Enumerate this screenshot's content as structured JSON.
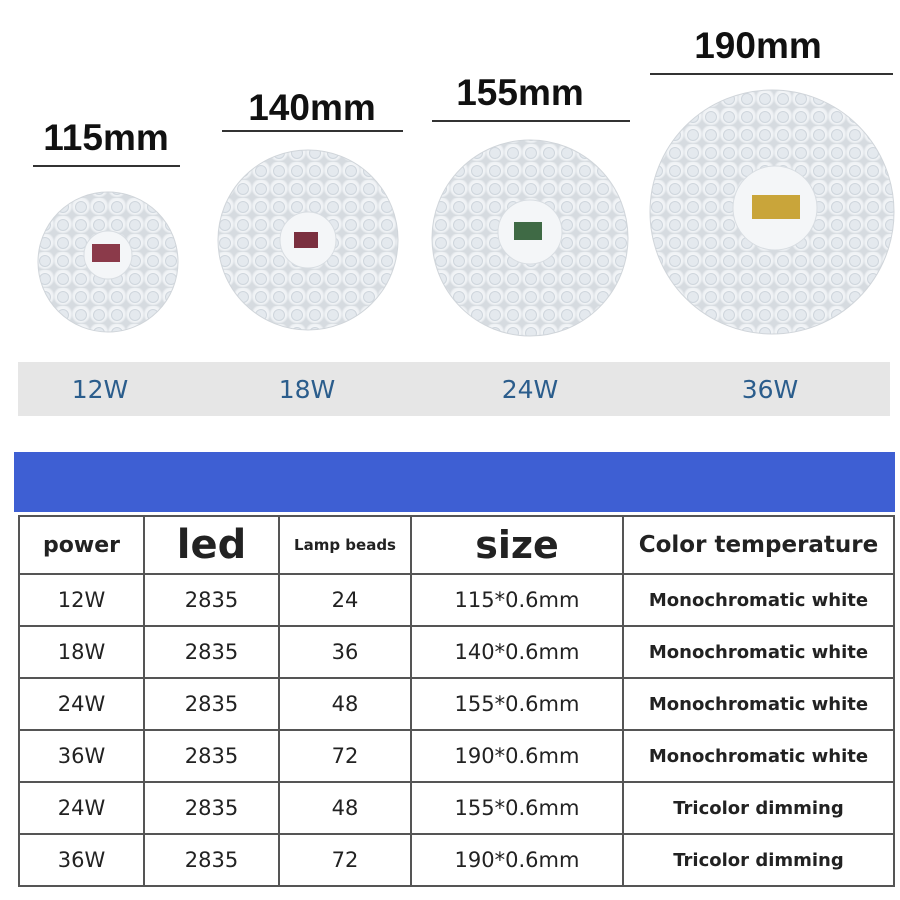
{
  "sizes": [
    "115mm",
    "140mm",
    "155mm",
    "190mm"
  ],
  "wattages": [
    "12W",
    "18W",
    "24W",
    "36W"
  ],
  "table": {
    "header": [
      "power",
      "led",
      "Lamp beads",
      "size",
      "Color temperature"
    ],
    "rows": [
      [
        "12W",
        "2835",
        "24",
        "115*0.6mm",
        "Monochromatic white"
      ],
      [
        "18W",
        "2835",
        "36",
        "140*0.6mm",
        "Monochromatic white"
      ],
      [
        "24W",
        "2835",
        "48",
        "155*0.6mm",
        "Monochromatic white"
      ],
      [
        "36W",
        "2835",
        "72",
        "190*0.6mm",
        "Monochromatic white"
      ],
      [
        "24W",
        "2835",
        "48",
        "155*0.6mm",
        "Tricolor dimming"
      ],
      [
        "36W",
        "2835",
        "72",
        "190*0.6mm",
        "Tricolor dimming"
      ]
    ]
  }
}
